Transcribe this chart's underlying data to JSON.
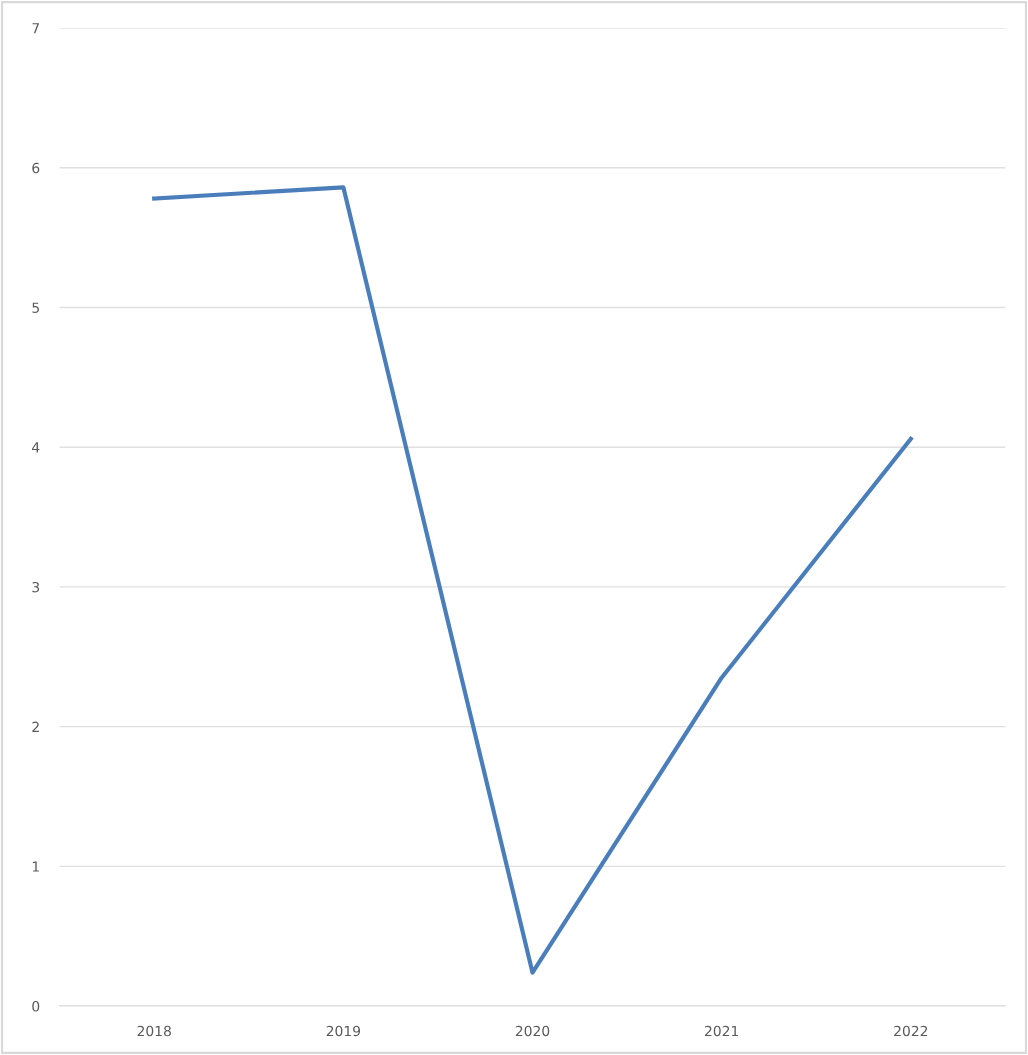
{
  "chart_data": {
    "type": "line",
    "categories": [
      "2018",
      "2019",
      "2020",
      "2021",
      "2022"
    ],
    "series": [
      {
        "color": "#4a7ebb",
        "values": [
          5.78,
          5.86,
          0.24,
          2.35,
          4.06
        ]
      }
    ],
    "ylim": [
      0,
      7
    ],
    "yticks": [
      0,
      1,
      2,
      3,
      4,
      5,
      6,
      7
    ],
    "grid": "y",
    "marker": "none",
    "line_style": "solid"
  }
}
